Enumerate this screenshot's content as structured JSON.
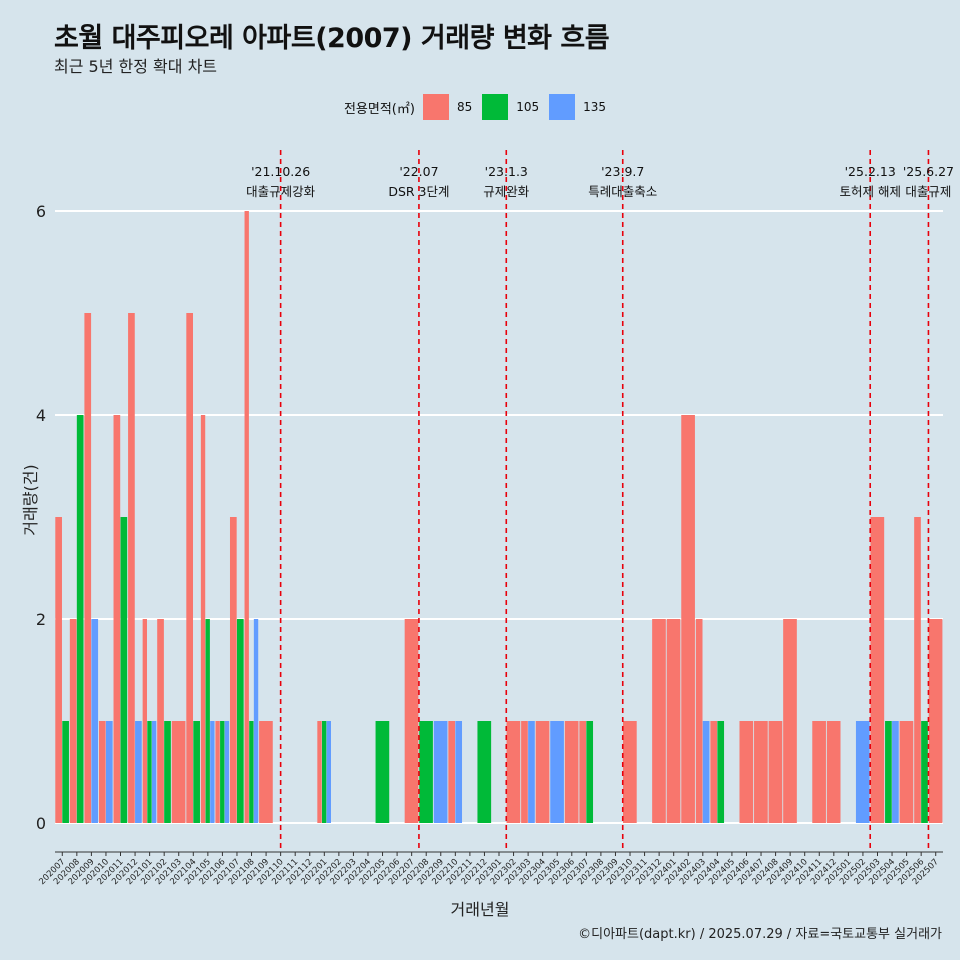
{
  "title": "초월 대주피오레 아파트(2007) 거래량 변화 흐름",
  "subtitle": "최근 5년 한정 확대 차트",
  "caption": "©디아파트(dapt.kr) / 2025.07.29 / 자료=국토교통부 실거래가",
  "colors": {
    "background": "#d6e4ec",
    "s85": "#f8766d",
    "s105": "#00ba38",
    "s135": "#619cff",
    "event_line": "#e8000b"
  },
  "chart_data": {
    "type": "bar",
    "xlabel": "거래년월",
    "ylabel": "거래량(건)",
    "ylim": [
      0,
      6
    ],
    "y_ticks": [
      0,
      2,
      4,
      6
    ],
    "grid": "horizontal",
    "legend": {
      "title": "전용면적(㎡)",
      "position": "top",
      "entries": [
        "85",
        "105",
        "135"
      ]
    },
    "categories": [
      "202007",
      "202008",
      "202009",
      "202010",
      "202011",
      "202012",
      "202101",
      "202102",
      "202103",
      "202104",
      "202105",
      "202106",
      "202107",
      "202108",
      "202109",
      "202110",
      "202111",
      "202112",
      "202201",
      "202202",
      "202203",
      "202204",
      "202205",
      "202206",
      "202207",
      "202208",
      "202209",
      "202210",
      "202211",
      "202212",
      "202301",
      "202302",
      "202303",
      "202304",
      "202305",
      "202306",
      "202307",
      "202308",
      "202309",
      "202310",
      "202311",
      "202312",
      "202401",
      "202402",
      "202403",
      "202404",
      "202405",
      "202406",
      "202407",
      "202408",
      "202409",
      "202410",
      "202411",
      "202412",
      "202501",
      "202502",
      "202503",
      "202504",
      "202505",
      "202506",
      "202507"
    ],
    "series": [
      {
        "name": "85",
        "values": [
          3,
          2,
          5,
          1,
          4,
          5,
          2,
          2,
          1,
          5,
          4,
          1,
          3,
          6,
          1,
          0,
          0,
          0,
          1,
          0,
          0,
          0,
          0,
          0,
          2,
          0,
          0,
          1,
          0,
          0,
          0,
          1,
          1,
          1,
          0,
          1,
          1,
          0,
          0,
          1,
          0,
          2,
          2,
          4,
          2,
          1,
          0,
          1,
          1,
          1,
          2,
          0,
          1,
          1,
          0,
          0,
          3,
          0,
          1,
          3,
          2
        ]
      },
      {
        "name": "105",
        "values": [
          1,
          4,
          0,
          0,
          3,
          0,
          1,
          1,
          0,
          1,
          2,
          1,
          2,
          1,
          0,
          0,
          0,
          0,
          1,
          0,
          0,
          0,
          1,
          0,
          0,
          1,
          0,
          0,
          0,
          1,
          0,
          0,
          0,
          0,
          0,
          0,
          1,
          0,
          0,
          0,
          0,
          0,
          0,
          0,
          0,
          1,
          0,
          0,
          0,
          0,
          0,
          0,
          0,
          0,
          0,
          0,
          0,
          1,
          0,
          1,
          0
        ]
      },
      {
        "name": "135",
        "values": [
          0,
          0,
          2,
          1,
          0,
          1,
          1,
          0,
          0,
          0,
          1,
          1,
          0,
          2,
          0,
          0,
          0,
          0,
          1,
          0,
          0,
          0,
          0,
          0,
          0,
          0,
          1,
          1,
          0,
          0,
          0,
          0,
          1,
          0,
          1,
          0,
          0,
          0,
          0,
          0,
          0,
          0,
          0,
          0,
          1,
          0,
          0,
          0,
          0,
          0,
          0,
          0,
          0,
          0,
          0,
          1,
          0,
          1,
          0,
          0,
          0
        ]
      }
    ],
    "events": [
      {
        "label": "'21.10.26\n대출규제강화",
        "position": 15.0
      },
      {
        "label": "'22.07\nDSR 3단계",
        "position": 24.5
      },
      {
        "label": "'23.1.3\n규제완화",
        "position": 30.5
      },
      {
        "label": "'23.9.7\n특례대출축소",
        "position": 38.5
      },
      {
        "label": "'25.2.13\n토허제 해제",
        "position": 55.5
      },
      {
        "label": "'25.6.27\n대출규제",
        "position": 59.5
      }
    ]
  }
}
